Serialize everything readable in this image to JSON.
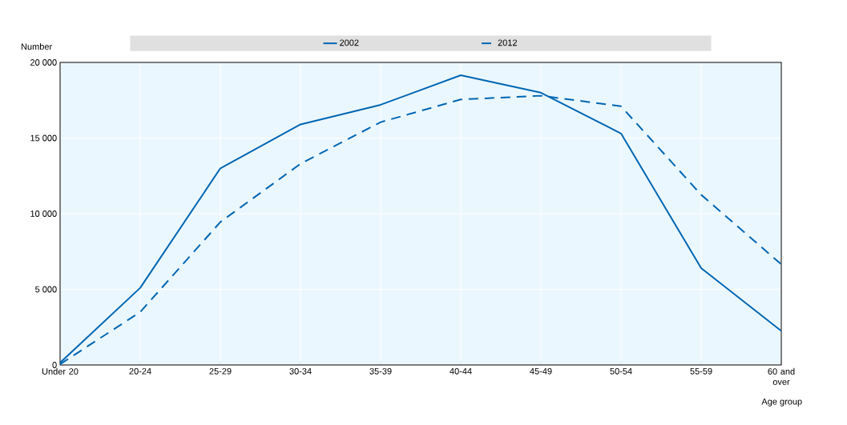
{
  "chart_data": {
    "type": "line",
    "xlabel": "Age group",
    "ylabel": "Number",
    "categories": [
      "Under 20",
      "20-24",
      "25-29",
      "30-34",
      "35-39",
      "40-44",
      "45-49",
      "50-54",
      "55-59",
      "60 and over"
    ],
    "series": [
      {
        "name": "2002",
        "color": "#0066b3",
        "line_style": "solid",
        "values": [
          150,
          5100,
          13000,
          15900,
          17200,
          19150,
          18000,
          15300,
          6400,
          2250
        ]
      },
      {
        "name": "2012",
        "color": "#0066b3",
        "line_style": "dashed",
        "values": [
          50,
          3500,
          9450,
          13300,
          16050,
          17550,
          17800,
          17100,
          11250,
          6650
        ]
      }
    ],
    "ylim": [
      0,
      20000
    ],
    "yticks": [
      0,
      {
        "value": 5000,
        "label": "5 000"
      },
      {
        "value": 10000,
        "label": "10 000"
      },
      {
        "value": 15000,
        "label": "15 000"
      },
      {
        "value": 20000,
        "label": "20 000"
      }
    ],
    "grid": true,
    "legend": "top",
    "marker": "none"
  }
}
